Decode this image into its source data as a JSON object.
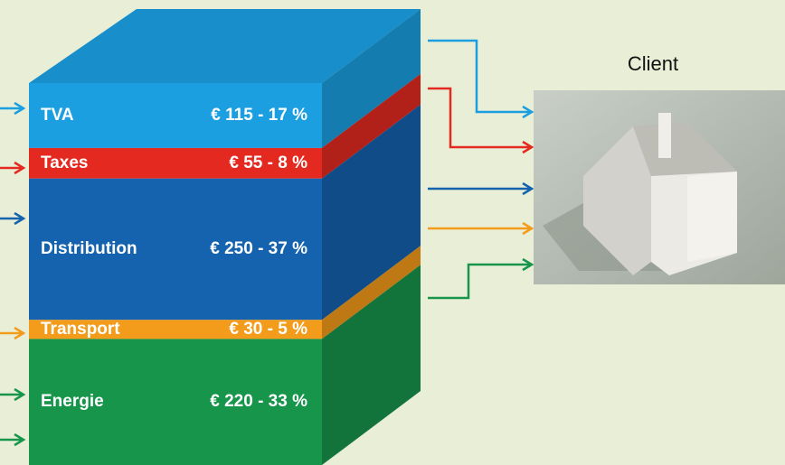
{
  "chart_data": {
    "type": "stacked-block",
    "categories": [
      "TVA",
      "Taxes",
      "Distribution",
      "Transport",
      "Energie"
    ],
    "values": [
      17,
      8,
      37,
      5,
      33
    ],
    "value_labels": [
      "€ 115 - 17 %",
      "€ 55 - 8 %",
      "€ 250 - 37 %",
      "€ 30 - 5 %",
      "€ 220 - 33 %"
    ],
    "colors": [
      "#1b9fe0",
      "#e42a20",
      "#1563ae",
      "#f39b1a",
      "#17954b"
    ],
    "ylim": [
      0,
      100
    ],
    "annotation": "Client"
  }
}
